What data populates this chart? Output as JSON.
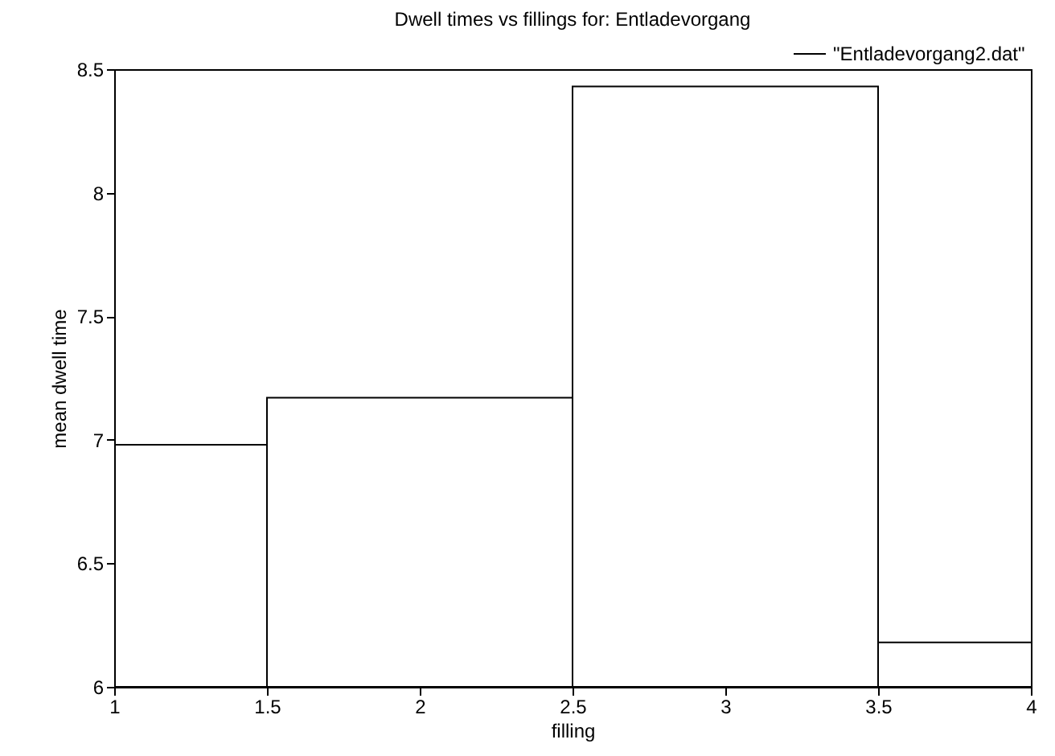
{
  "chart_data": {
    "type": "histogram",
    "title": "Dwell times vs fillings for: Entladevorgang",
    "xlabel": "filling",
    "ylabel": "mean dwell time",
    "bins": [
      0.5,
      1.5,
      2.5,
      3.5,
      4.5
    ],
    "series": [
      {
        "name": "\"Entladevorgang2.dat\"",
        "color": "#000000",
        "values": [
          6.98,
          7.17,
          8.43,
          6.18
        ]
      }
    ],
    "xlim": [
      1,
      4
    ],
    "xticks": [
      1,
      1.5,
      2,
      2.5,
      3,
      3.5,
      4
    ],
    "ylim": [
      6,
      8.5
    ],
    "yticks": [
      6,
      6.5,
      7,
      7.5,
      8,
      8.5
    ],
    "grid": false,
    "legend": "top right"
  }
}
